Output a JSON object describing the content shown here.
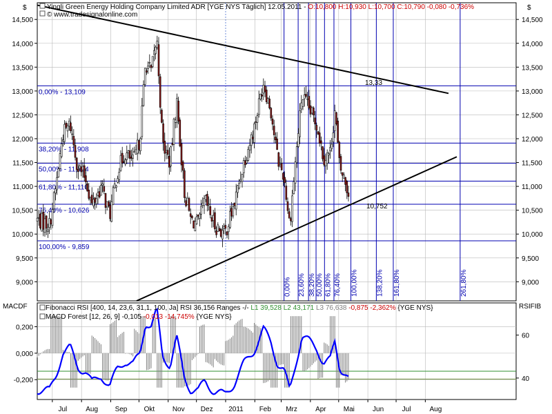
{
  "colors": {
    "background": "#ffffff",
    "candle_up": "#ffffff",
    "candle_down": "#8b1a1a",
    "fib_line": "#0000b0",
    "grid": "#b8b8b8",
    "trend": "#000000",
    "rsi_line": "#0000ff",
    "macd_hist": "#808080",
    "l1": "#2f8f2f",
    "l2": "#2f8f2f",
    "l3": "#808080",
    "neg": "#cc0000"
  },
  "header": {
    "currency_left": "$",
    "currency_right": "$",
    "title_main": "Yingli Green Energy Holding Company Limited ADR [YGE NYS  Täglich] 12.05.2011 - ",
    "title_ohlc": "O:10,800 H:10,930 L:10,700 C:10,790 -0,080 -0,736%",
    "source": "© www.tradesignalonline.com"
  },
  "price_axis": {
    "ticks": [
      "14,500",
      "14,000",
      "13,500",
      "13,000",
      "12,500",
      "12,000",
      "11,500",
      "11,000",
      "10,500",
      "10,000",
      "9,500",
      "9,000"
    ]
  },
  "time_axis": {
    "labels": [
      "Jul",
      "Aug",
      "Sep",
      "Okt",
      "Nov",
      "Dez",
      "2011",
      "Feb",
      "Mrz",
      "Apr",
      "Mai",
      "Jun",
      "Jul",
      "Aug"
    ]
  },
  "fib_retracement": [
    {
      "label": "0,00% - 13,109",
      "value": 13.109
    },
    {
      "label": "38,20% - 11,908",
      "value": 11.908
    },
    {
      "label": "50,00% - 11,484",
      "value": 11.484
    },
    {
      "label": "61,80% - 11,110",
      "value": 11.11
    },
    {
      "label": "76,40% - 10,626",
      "value": 10.626
    },
    {
      "label": "100,00% - 9,859",
      "value": 9.859
    }
  ],
  "fib_time": [
    "0,00%",
    "23,60%",
    "38,20%",
    "50,00%",
    "61,80%",
    "76,40%",
    "100,00%",
    "138,20%",
    "161,80%",
    "261,80%"
  ],
  "annotations": {
    "trend_high": "13,33",
    "trend_low": "10,752"
  },
  "lower_panel": {
    "left_title": "MACDF",
    "right_title": "RSIFIB",
    "legend1_prefix": "Fibonacci RSI [400, 14, 23,6, 31,1, 100, Ja] RSI 36,156 Ranges -/- ",
    "legend1_l1": "L1 39,528",
    "legend1_l2": "L2 43,171",
    "legend1_l3": "L3 76,638",
    "legend1_neg": "-0,875 -2,362%",
    "legend1_sym": "{YGE NYS}",
    "legend2_prefix": "MACD Forest [12, 26, 9] -0,105 ",
    "legend2_neg": "-0,013 -14,745%",
    "legend2_sym": "{YGE NYS}",
    "left_ticks": [
      "0,200",
      "0,000",
      "-0,200"
    ],
    "right_ticks": [
      "60",
      "40"
    ]
  },
  "chart_data": [
    {
      "type": "candlestick",
      "title": "Yingli Green Energy Holding Company Limited ADR [YGE NYS Täglich]",
      "ylim": [
        8.6,
        14.85
      ],
      "last": {
        "date": "12.05.2011",
        "open": 10.8,
        "high": 10.93,
        "low": 10.7,
        "close": 10.79,
        "change": -0.08,
        "change_pct": -0.736
      },
      "fib_levels": [
        13.109,
        11.908,
        11.484,
        11.11,
        10.626,
        9.859
      ],
      "trendline_upper": {
        "from": {
          "date": "2010-06",
          "value": 14.8
        },
        "to": {
          "date": "2011-07",
          "value": 12.95
        }
      },
      "trendline_lower": {
        "from": {
          "date": "2010-12",
          "value": 8.6
        },
        "to": {
          "date": "2011-07",
          "value": 11.62
        }
      },
      "close_path": [
        {
          "x": "2010-06-15",
          "y": 10.3
        },
        {
          "x": "2010-06-28",
          "y": 10.2
        },
        {
          "x": "2010-07-05",
          "y": 11.0
        },
        {
          "x": "2010-07-12",
          "y": 12.1
        },
        {
          "x": "2010-07-20",
          "y": 12.3
        },
        {
          "x": "2010-07-28",
          "y": 11.4
        },
        {
          "x": "2010-08-05",
          "y": 11.2
        },
        {
          "x": "2010-08-12",
          "y": 10.6
        },
        {
          "x": "2010-08-22",
          "y": 11.0
        },
        {
          "x": "2010-08-31",
          "y": 10.4
        },
        {
          "x": "2010-09-08",
          "y": 11.3
        },
        {
          "x": "2010-09-16",
          "y": 11.7
        },
        {
          "x": "2010-09-25",
          "y": 11.5
        },
        {
          "x": "2010-10-02",
          "y": 12.0
        },
        {
          "x": "2010-10-08",
          "y": 13.6
        },
        {
          "x": "2010-10-14",
          "y": 13.4
        },
        {
          "x": "2010-10-20",
          "y": 14.1
        },
        {
          "x": "2010-10-26",
          "y": 11.9
        },
        {
          "x": "2010-11-03",
          "y": 11.5
        },
        {
          "x": "2010-11-10",
          "y": 12.8
        },
        {
          "x": "2010-11-18",
          "y": 10.9
        },
        {
          "x": "2010-11-25",
          "y": 10.3
        },
        {
          "x": "2010-12-03",
          "y": 10.2
        },
        {
          "x": "2010-12-10",
          "y": 10.7
        },
        {
          "x": "2010-12-20",
          "y": 10.2
        },
        {
          "x": "2010-12-31",
          "y": 10.0
        },
        {
          "x": "2011-01-10",
          "y": 10.6
        },
        {
          "x": "2011-01-20",
          "y": 11.5
        },
        {
          "x": "2011-01-31",
          "y": 12.2
        },
        {
          "x": "2011-02-10",
          "y": 13.2
        },
        {
          "x": "2011-02-18",
          "y": 12.6
        },
        {
          "x": "2011-02-25",
          "y": 11.6
        },
        {
          "x": "2011-03-04",
          "y": 11.2
        },
        {
          "x": "2011-03-10",
          "y": 10.2
        },
        {
          "x": "2011-03-17",
          "y": 11.7
        },
        {
          "x": "2011-03-23",
          "y": 12.9
        },
        {
          "x": "2011-03-31",
          "y": 12.6
        },
        {
          "x": "2011-04-08",
          "y": 12.3
        },
        {
          "x": "2011-04-15",
          "y": 11.6
        },
        {
          "x": "2011-04-22",
          "y": 11.7
        },
        {
          "x": "2011-04-27",
          "y": 12.6
        },
        {
          "x": "2011-05-02",
          "y": 11.4
        },
        {
          "x": "2011-05-08",
          "y": 11.1
        },
        {
          "x": "2011-05-12",
          "y": 10.79
        }
      ]
    },
    {
      "type": "line",
      "title": "Fibonacci RSI",
      "rsi_last": 36.156,
      "levels": {
        "L1": 39.528,
        "L2": 43.171,
        "L3": 76.638
      },
      "ylim": [
        30,
        75
      ]
    },
    {
      "type": "bar",
      "title": "MACD Forest",
      "macd_last": -0.105,
      "change": -0.013,
      "change_pct": -14.745,
      "ylim": [
        -0.35,
        0.38
      ]
    }
  ]
}
